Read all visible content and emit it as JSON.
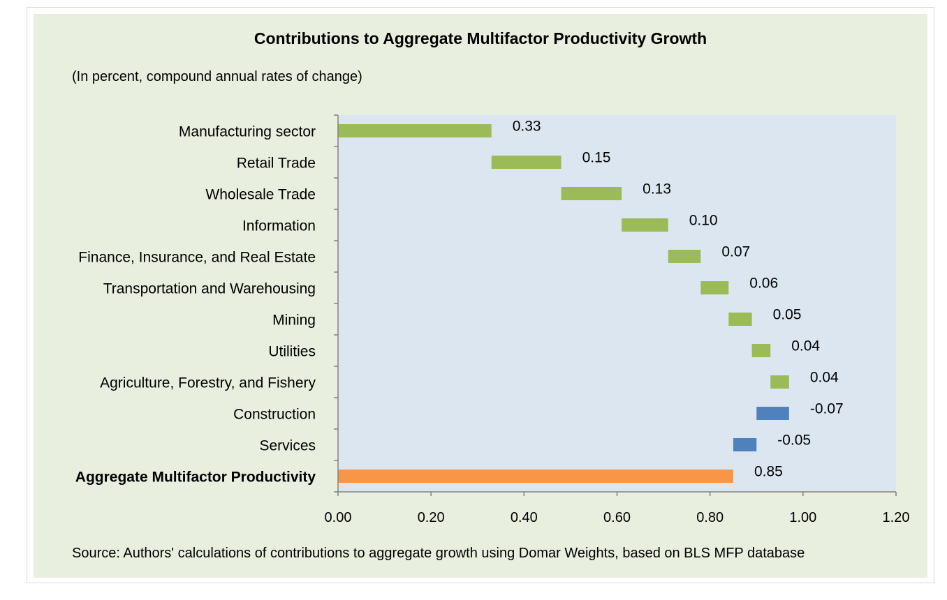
{
  "chart_data": {
    "type": "bar",
    "subtype": "waterfall-horizontal",
    "title": "Contributions to Aggregate Multifactor Productivity Growth",
    "subtitle": "(In percent, compound annual rates of change)",
    "source": "Source: Authors' calculations of contributions to aggregate growth using Domar Weights, based on BLS MFP database",
    "xlim": [
      0,
      1.2
    ],
    "x_ticks": [
      "0.00",
      "0.20",
      "0.40",
      "0.60",
      "0.80",
      "1.00",
      "1.20"
    ],
    "grid": false,
    "legend": "none",
    "bars": [
      {
        "label": "Manufacturing sector",
        "start": 0.0,
        "end": 0.33,
        "value_label": "0.33",
        "color": "#9bbb59",
        "bold": false
      },
      {
        "label": "Retail Trade",
        "start": 0.33,
        "end": 0.48,
        "value_label": "0.15",
        "color": "#9bbb59",
        "bold": false
      },
      {
        "label": "Wholesale Trade",
        "start": 0.48,
        "end": 0.61,
        "value_label": "0.13",
        "color": "#9bbb59",
        "bold": false
      },
      {
        "label": "Information",
        "start": 0.61,
        "end": 0.71,
        "value_label": "0.10",
        "color": "#9bbb59",
        "bold": false
      },
      {
        "label": "Finance, Insurance, and Real Estate",
        "start": 0.71,
        "end": 0.78,
        "value_label": "0.07",
        "color": "#9bbb59",
        "bold": false
      },
      {
        "label": "Transportation and Warehousing",
        "start": 0.78,
        "end": 0.84,
        "value_label": "0.06",
        "color": "#9bbb59",
        "bold": false
      },
      {
        "label": "Mining",
        "start": 0.84,
        "end": 0.89,
        "value_label": "0.05",
        "color": "#9bbb59",
        "bold": false
      },
      {
        "label": "Utilities",
        "start": 0.89,
        "end": 0.93,
        "value_label": "0.04",
        "color": "#9bbb59",
        "bold": false
      },
      {
        "label": "Agriculture, Forestry, and Fishery",
        "start": 0.93,
        "end": 0.97,
        "value_label": "0.04",
        "color": "#9bbb59",
        "bold": false
      },
      {
        "label": "Construction",
        "start": 0.9,
        "end": 0.97,
        "value_label": "-0.07",
        "color": "#4f81bd",
        "bold": false
      },
      {
        "label": "Services",
        "start": 0.85,
        "end": 0.9,
        "value_label": "-0.05",
        "color": "#4f81bd",
        "bold": false
      },
      {
        "label": "Aggregate Multifactor Productivity",
        "start": 0.0,
        "end": 0.85,
        "value_label": "0.85",
        "color": "#f79646",
        "bold": true
      }
    ],
    "colors": {
      "plot_area": "#dce6f1",
      "panel": "#e9efdf",
      "axis": "#808080"
    }
  }
}
